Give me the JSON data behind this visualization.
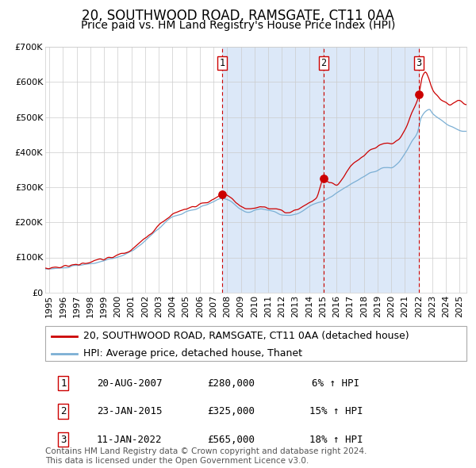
{
  "title": "20, SOUTHWOOD ROAD, RAMSGATE, CT11 0AA",
  "subtitle": "Price paid vs. HM Land Registry's House Price Index (HPI)",
  "ylim": [
    0,
    700000
  ],
  "xlim_start": 1994.7,
  "xlim_end": 2025.5,
  "yticks": [
    0,
    100000,
    200000,
    300000,
    400000,
    500000,
    600000,
    700000
  ],
  "ytick_labels": [
    "£0",
    "£100K",
    "£200K",
    "£300K",
    "£400K",
    "£500K",
    "£600K",
    "£700K"
  ],
  "xtick_years": [
    1995,
    1996,
    1997,
    1998,
    1999,
    2000,
    2001,
    2002,
    2003,
    2004,
    2005,
    2006,
    2007,
    2008,
    2009,
    2010,
    2011,
    2012,
    2013,
    2014,
    2015,
    2016,
    2017,
    2018,
    2019,
    2020,
    2021,
    2022,
    2023,
    2024,
    2025
  ],
  "hpi_color": "#7bafd4",
  "price_color": "#cc0000",
  "plot_bg": "#ffffff",
  "grid_color": "#cccccc",
  "sale_dates": [
    2007.638,
    2015.058,
    2022.028
  ],
  "sale_prices": [
    280000,
    325000,
    565000
  ],
  "sale_labels": [
    "1",
    "2",
    "3"
  ],
  "vline_color": "#cc0000",
  "shade_color": "#dce8f8",
  "shade_start": 2007.638,
  "shade_end": 2022.028,
  "legend_entries": [
    "20, SOUTHWOOD ROAD, RAMSGATE, CT11 0AA (detached house)",
    "HPI: Average price, detached house, Thanet"
  ],
  "table_data": [
    [
      "1",
      "20-AUG-2007",
      "£280,000",
      "6% ↑ HPI"
    ],
    [
      "2",
      "23-JAN-2015",
      "£325,000",
      "15% ↑ HPI"
    ],
    [
      "3",
      "11-JAN-2022",
      "£565,000",
      "18% ↑ HPI"
    ]
  ],
  "footer": "Contains HM Land Registry data © Crown copyright and database right 2024.\nThis data is licensed under the Open Government Licence v3.0.",
  "title_fontsize": 12,
  "subtitle_fontsize": 10,
  "tick_fontsize": 8,
  "legend_fontsize": 9,
  "table_fontsize": 9,
  "footer_fontsize": 7.5
}
